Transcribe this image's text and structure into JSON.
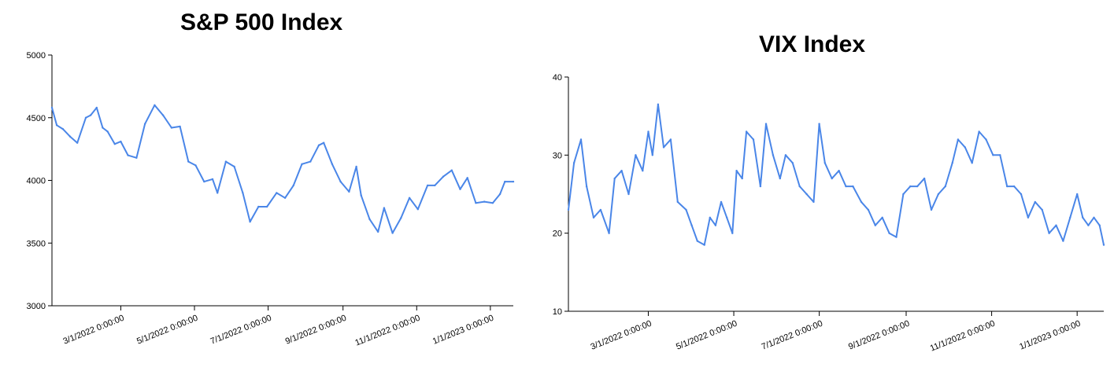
{
  "chart_data": [
    {
      "type": "line",
      "title": "S&P 500 Index",
      "xlabel": "",
      "ylabel": "",
      "ylim": [
        3000,
        5000
      ],
      "yticks": [
        "3000",
        "3500",
        "4000",
        "4500",
        "5000"
      ],
      "xticks": [
        "3/1/2022 0:00:00",
        "5/1/2022 0:00:00",
        "7/1/2022 0:00:00",
        "9/1/2022 0:00:00",
        "11/1/2022 0:00:00",
        "1/1/2023 0:00:00"
      ],
      "xlim": [
        "2022-01-03",
        "2023-01-20"
      ],
      "grid": false,
      "series": [
        {
          "color": "#4a86e8",
          "points": [
            [
              "2022-01-03",
              4580
            ],
            [
              "2022-01-07",
              4440
            ],
            [
              "2022-01-12",
              4410
            ],
            [
              "2022-01-18",
              4350
            ],
            [
              "2022-01-24",
              4300
            ],
            [
              "2022-01-31",
              4500
            ],
            [
              "2022-02-04",
              4520
            ],
            [
              "2022-02-09",
              4580
            ],
            [
              "2022-02-14",
              4420
            ],
            [
              "2022-02-18",
              4390
            ],
            [
              "2022-02-24",
              4290
            ],
            [
              "2022-03-01",
              4310
            ],
            [
              "2022-03-07",
              4200
            ],
            [
              "2022-03-14",
              4180
            ],
            [
              "2022-03-21",
              4450
            ],
            [
              "2022-03-29",
              4600
            ],
            [
              "2022-04-05",
              4520
            ],
            [
              "2022-04-12",
              4420
            ],
            [
              "2022-04-19",
              4430
            ],
            [
              "2022-04-26",
              4150
            ],
            [
              "2022-05-02",
              4120
            ],
            [
              "2022-05-09",
              3990
            ],
            [
              "2022-05-16",
              4010
            ],
            [
              "2022-05-20",
              3900
            ],
            [
              "2022-05-27",
              4150
            ],
            [
              "2022-06-03",
              4110
            ],
            [
              "2022-06-10",
              3900
            ],
            [
              "2022-06-16",
              3670
            ],
            [
              "2022-06-23",
              3790
            ],
            [
              "2022-06-30",
              3790
            ],
            [
              "2022-07-08",
              3900
            ],
            [
              "2022-07-15",
              3860
            ],
            [
              "2022-07-22",
              3960
            ],
            [
              "2022-07-29",
              4130
            ],
            [
              "2022-08-05",
              4150
            ],
            [
              "2022-08-12",
              4280
            ],
            [
              "2022-08-16",
              4300
            ],
            [
              "2022-08-23",
              4130
            ],
            [
              "2022-08-30",
              3990
            ],
            [
              "2022-09-06",
              3910
            ],
            [
              "2022-09-12",
              4110
            ],
            [
              "2022-09-16",
              3880
            ],
            [
              "2022-09-23",
              3690
            ],
            [
              "2022-09-30",
              3590
            ],
            [
              "2022-10-05",
              3780
            ],
            [
              "2022-10-12",
              3580
            ],
            [
              "2022-10-19",
              3700
            ],
            [
              "2022-10-26",
              3860
            ],
            [
              "2022-11-02",
              3770
            ],
            [
              "2022-11-10",
              3960
            ],
            [
              "2022-11-16",
              3960
            ],
            [
              "2022-11-23",
              4030
            ],
            [
              "2022-11-30",
              4080
            ],
            [
              "2022-12-07",
              3930
            ],
            [
              "2022-12-13",
              4020
            ],
            [
              "2022-12-20",
              3820
            ],
            [
              "2022-12-27",
              3830
            ],
            [
              "2023-01-03",
              3820
            ],
            [
              "2023-01-09",
              3890
            ],
            [
              "2023-01-13",
              3990
            ],
            [
              "2023-01-20",
              3990
            ]
          ]
        }
      ]
    },
    {
      "type": "line",
      "title": "VIX Index",
      "xlabel": "",
      "ylabel": "",
      "ylim": [
        10,
        40
      ],
      "yticks": [
        "10",
        "20",
        "30",
        "40"
      ],
      "xticks": [
        "3/1/2022 0:00:00",
        "5/1/2022 0:00:00",
        "7/1/2022 0:00:00",
        "9/1/2022 0:00:00",
        "11/1/2022 0:00:00",
        "1/1/2023 0:00:00"
      ],
      "xlim": [
        "2022-01-03",
        "2023-01-20"
      ],
      "grid": false,
      "series": [
        {
          "color": "#4a86e8",
          "points": [
            [
              "2022-01-03",
              23
            ],
            [
              "2022-01-07",
              29
            ],
            [
              "2022-01-12",
              32
            ],
            [
              "2022-01-16",
              26
            ],
            [
              "2022-01-21",
              22
            ],
            [
              "2022-01-26",
              23
            ],
            [
              "2022-02-01",
              20
            ],
            [
              "2022-02-05",
              27
            ],
            [
              "2022-02-10",
              28
            ],
            [
              "2022-02-15",
              25
            ],
            [
              "2022-02-20",
              30
            ],
            [
              "2022-02-25",
              28
            ],
            [
              "2022-03-01",
              33
            ],
            [
              "2022-03-04",
              30
            ],
            [
              "2022-03-08",
              36.5
            ],
            [
              "2022-03-12",
              31
            ],
            [
              "2022-03-17",
              32
            ],
            [
              "2022-03-22",
              24
            ],
            [
              "2022-03-28",
              23
            ],
            [
              "2022-04-01",
              21
            ],
            [
              "2022-04-05",
              19
            ],
            [
              "2022-04-10",
              18.5
            ],
            [
              "2022-04-14",
              22
            ],
            [
              "2022-04-18",
              21
            ],
            [
              "2022-04-22",
              24
            ],
            [
              "2022-04-26",
              22
            ],
            [
              "2022-04-30",
              20
            ],
            [
              "2022-05-03",
              28
            ],
            [
              "2022-05-07",
              27
            ],
            [
              "2022-05-10",
              33
            ],
            [
              "2022-05-15",
              32
            ],
            [
              "2022-05-20",
              26
            ],
            [
              "2022-05-24",
              34
            ],
            [
              "2022-05-29",
              30
            ],
            [
              "2022-06-03",
              27
            ],
            [
              "2022-06-07",
              30
            ],
            [
              "2022-06-12",
              29
            ],
            [
              "2022-06-17",
              26
            ],
            [
              "2022-06-22",
              25
            ],
            [
              "2022-06-27",
              24
            ],
            [
              "2022-07-01",
              34
            ],
            [
              "2022-07-05",
              29
            ],
            [
              "2022-07-10",
              27
            ],
            [
              "2022-07-15",
              28
            ],
            [
              "2022-07-20",
              26
            ],
            [
              "2022-07-25",
              26
            ],
            [
              "2022-07-31",
              24
            ],
            [
              "2022-08-05",
              23
            ],
            [
              "2022-08-10",
              21
            ],
            [
              "2022-08-15",
              22
            ],
            [
              "2022-08-20",
              20
            ],
            [
              "2022-08-25",
              19.5
            ],
            [
              "2022-08-30",
              25
            ],
            [
              "2022-09-04",
              26
            ],
            [
              "2022-09-09",
              26
            ],
            [
              "2022-09-14",
              27
            ],
            [
              "2022-09-19",
              23
            ],
            [
              "2022-09-24",
              25
            ],
            [
              "2022-09-29",
              26
            ],
            [
              "2022-10-04",
              29
            ],
            [
              "2022-10-08",
              32
            ],
            [
              "2022-10-13",
              31
            ],
            [
              "2022-10-18",
              29
            ],
            [
              "2022-10-23",
              33
            ],
            [
              "2022-10-28",
              32
            ],
            [
              "2022-11-02",
              30
            ],
            [
              "2022-11-07",
              30
            ],
            [
              "2022-11-12",
              26
            ],
            [
              "2022-11-17",
              26
            ],
            [
              "2022-11-22",
              25
            ],
            [
              "2022-11-27",
              22
            ],
            [
              "2022-12-02",
              24
            ],
            [
              "2022-12-07",
              23
            ],
            [
              "2022-12-12",
              20
            ],
            [
              "2022-12-17",
              21
            ],
            [
              "2022-12-22",
              19
            ],
            [
              "2022-12-27",
              22
            ],
            [
              "2023-01-01",
              25
            ],
            [
              "2023-01-05",
              22
            ],
            [
              "2023-01-09",
              21
            ],
            [
              "2023-01-13",
              22
            ],
            [
              "2023-01-17",
              21
            ],
            [
              "2023-01-20",
              18.5
            ]
          ]
        }
      ]
    }
  ]
}
